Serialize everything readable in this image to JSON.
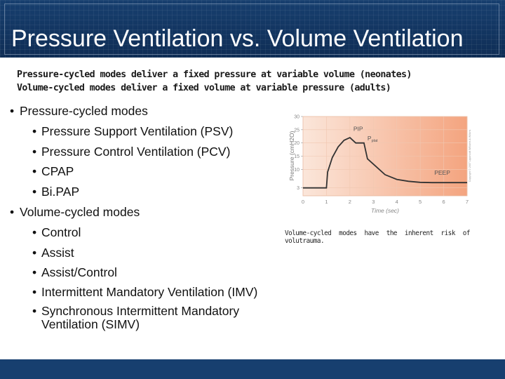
{
  "slide": {
    "title": "Pressure Ventilation vs. Volume Ventilation",
    "subtitle_lines": [
      "Pressure-cycled modes deliver a fixed pressure at variable volume (neonates)",
      "Volume-cycled modes deliver a fixed volume at variable pressure (adults)"
    ],
    "bullets": {
      "pressure_heading": "Pressure-cycled modes",
      "pressure_items": [
        "Pressure Support Ventilation (PSV)",
        "Pressure Control Ventilation (PCV)",
        "CPAP",
        "Bi.PAP"
      ],
      "volume_heading": "Volume-cycled modes",
      "volume_items": [
        "Control",
        "Assist",
        "Assist/Control",
        "Intermittent Mandatory Ventilation (IMV)",
        "Synchronous Intermittent Mandatory Ventilation (SIMV)"
      ]
    },
    "note": "Volume-cycled modes have the inherent risk of volutrauma.",
    "colors": {
      "title_bar": "#173f6f",
      "chart_fill_light": "#fbe3d4",
      "chart_fill_dark": "#f3a27c",
      "curve": "#333333"
    }
  },
  "chart_data": {
    "type": "line",
    "xlabel": "Time (sec)",
    "ylabel": "Pressure (cmH2O)",
    "x_ticks": [
      "0",
      "1",
      "2",
      "3",
      "4",
      "5",
      "6",
      "7"
    ],
    "y_ticks": [
      "3",
      "10",
      "15",
      "20",
      "25",
      "30"
    ],
    "xlim": [
      0,
      7
    ],
    "ylim": [
      0,
      30
    ],
    "series": [
      {
        "points": [
          [
            0,
            3
          ],
          [
            1,
            3
          ],
          [
            1.05,
            9
          ],
          [
            1.25,
            14.5
          ],
          [
            1.5,
            18.5
          ],
          [
            1.75,
            21
          ],
          [
            2,
            22
          ],
          [
            2.25,
            20
          ],
          [
            2.6,
            20
          ],
          [
            2.75,
            14
          ],
          [
            3,
            12
          ],
          [
            3.5,
            8
          ],
          [
            4,
            6.2
          ],
          [
            4.5,
            5.5
          ],
          [
            5,
            5.1
          ],
          [
            5.5,
            5
          ],
          [
            7,
            5
          ]
        ]
      }
    ],
    "annotations": [
      {
        "text": "PIP",
        "x": 2.15,
        "y": 24.5
      },
      {
        "text": "P",
        "sub": "plat",
        "x": 2.75,
        "y": 21
      },
      {
        "text": "PEEP",
        "x": 5.6,
        "y": 8
      }
    ],
    "grid": true,
    "side_caption": "Copyright © 2007 Lippincott Williams & Wilkins"
  }
}
